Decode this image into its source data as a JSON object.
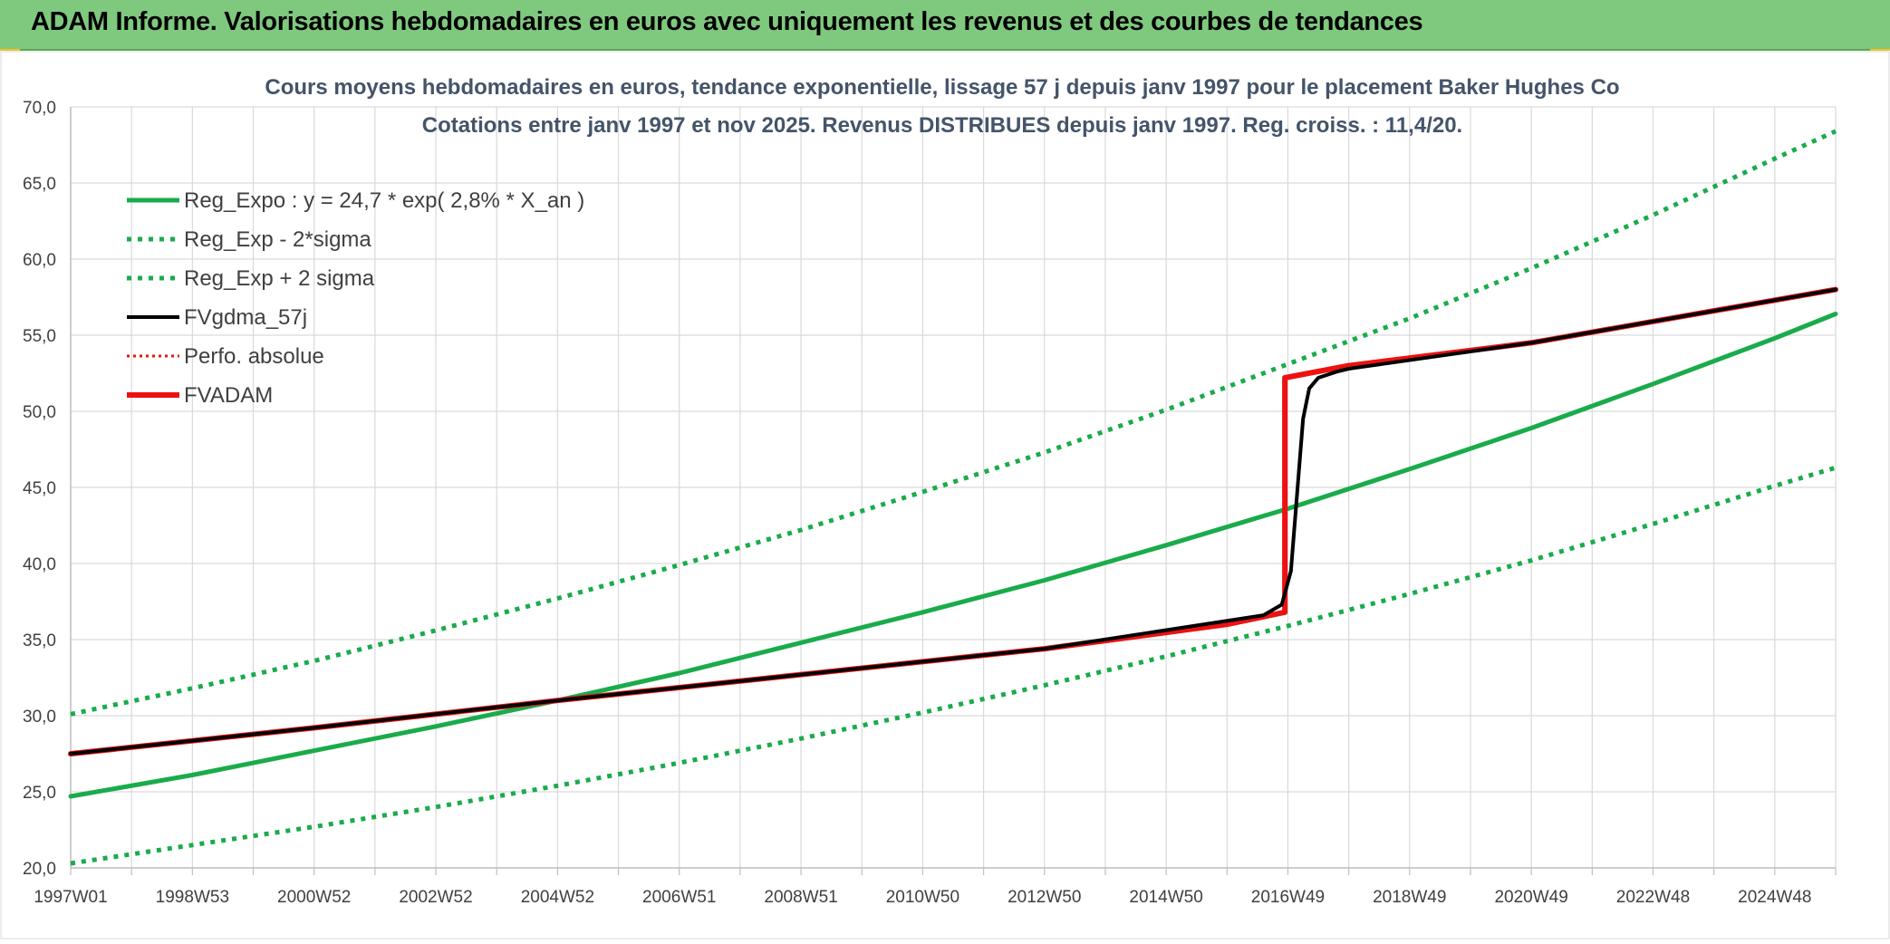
{
  "banner": {
    "title": "ADAM Informe. Valorisations hebdomadaires en euros avec uniquement les revenus et des courbes de tendances"
  },
  "colors": {
    "banner_bg": "#7fc97f",
    "green": "#1aab4b",
    "red": "#ee1111",
    "black": "#000000",
    "grid": "#d9d9d9",
    "title_text": "#44546a",
    "corner_accent": "#f2c21b"
  },
  "chart_data": {
    "type": "line",
    "title": "Cours moyens hebdomadaires en euros, tendance exponentielle, lissage 57 j depuis janv 1997 pour le placement Baker Hughes Co",
    "subtitle": "Cotations entre janv 1997 et nov 2025. Revenus DISTRIBUES depuis janv 1997. Reg. croiss. : 11,4/20.",
    "xlabel": "",
    "ylabel": "",
    "ylim": [
      20,
      70
    ],
    "y_ticks": [
      "20,0",
      "25,0",
      "30,0",
      "35,0",
      "40,0",
      "45,0",
      "50,0",
      "55,0",
      "60,0",
      "65,0",
      "70,0"
    ],
    "x_tick_labels": [
      "1997W01",
      "1998W53",
      "2000W52",
      "2002W52",
      "2004W52",
      "2006W51",
      "2008W51",
      "2010W50",
      "2012W50",
      "2014W50",
      "2016W49",
      "2018W49",
      "2020W49",
      "2022W48",
      "2024W48"
    ],
    "x_range_years": [
      1997.0,
      2026.0
    ],
    "grid": true,
    "legend_position": "top-left",
    "series": [
      {
        "name": "Reg_Expo : y = 24,7 * exp( 2,8% *  X_an )",
        "color": "#1aab4b",
        "style": "solid",
        "width": 5,
        "x": [
          1997,
          1999,
          2001,
          2003,
          2005,
          2007,
          2009,
          2011,
          2013,
          2015,
          2017,
          2019,
          2021,
          2023,
          2025,
          2026
        ],
        "y": [
          24.7,
          26.1,
          27.7,
          29.3,
          31.0,
          32.8,
          34.8,
          36.8,
          38.9,
          41.2,
          43.6,
          46.2,
          48.9,
          51.8,
          54.8,
          56.4
        ]
      },
      {
        "name": "Reg_Exp - 2*sigma",
        "color": "#1aab4b",
        "style": "dotted",
        "width": 5,
        "x": [
          1997,
          1999,
          2001,
          2003,
          2005,
          2007,
          2009,
          2011,
          2013,
          2015,
          2017,
          2019,
          2021,
          2023,
          2025,
          2026
        ],
        "y": [
          20.3,
          21.5,
          22.7,
          24.0,
          25.4,
          26.9,
          28.5,
          30.2,
          32.0,
          33.9,
          35.9,
          38.0,
          40.2,
          42.6,
          45.1,
          46.3
        ]
      },
      {
        "name": "Reg_Exp + 2 sigma",
        "color": "#1aab4b",
        "style": "dotted",
        "width": 5,
        "x": [
          1997,
          1999,
          2001,
          2003,
          2005,
          2007,
          2009,
          2011,
          2013,
          2015,
          2017,
          2019,
          2021,
          2023,
          2025,
          2026
        ],
        "y": [
          30.1,
          31.8,
          33.6,
          35.6,
          37.7,
          39.9,
          42.2,
          44.7,
          47.3,
          50.1,
          53.1,
          56.1,
          59.4,
          62.9,
          66.6,
          68.4
        ]
      },
      {
        "name": "FVgdma_57j",
        "color": "#000000",
        "style": "solid",
        "width": 4,
        "x": [
          1997,
          2001,
          2005,
          2009,
          2013,
          2016.6,
          2016.9,
          2017.05,
          2017.15,
          2017.25,
          2017.35,
          2017.5,
          2017.8,
          2018,
          2021,
          2026
        ],
        "y": [
          27.5,
          29.2,
          31.0,
          32.7,
          34.4,
          36.6,
          37.3,
          39.5,
          44.5,
          49.5,
          51.5,
          52.2,
          52.6,
          52.8,
          54.5,
          58.0
        ]
      },
      {
        "name": "Perfo. absolue",
        "color": "#ee1111",
        "style": "dotted",
        "width": 3,
        "x": [
          1997,
          2001,
          2005,
          2009,
          2013,
          2016,
          2016.95,
          2016.95,
          2018,
          2021,
          2026
        ],
        "y": [
          27.5,
          29.2,
          31.0,
          32.7,
          34.4,
          36.0,
          36.8,
          52.2,
          53.0,
          54.5,
          58.0
        ]
      },
      {
        "name": "FVADAM",
        "color": "#ee1111",
        "style": "solid",
        "width": 6,
        "x": [
          1997,
          2001,
          2005,
          2009,
          2013,
          2016,
          2016.95,
          2016.95,
          2018,
          2021,
          2026
        ],
        "y": [
          27.5,
          29.2,
          31.0,
          32.7,
          34.4,
          36.0,
          36.8,
          52.2,
          53.0,
          54.5,
          58.0
        ]
      }
    ]
  }
}
